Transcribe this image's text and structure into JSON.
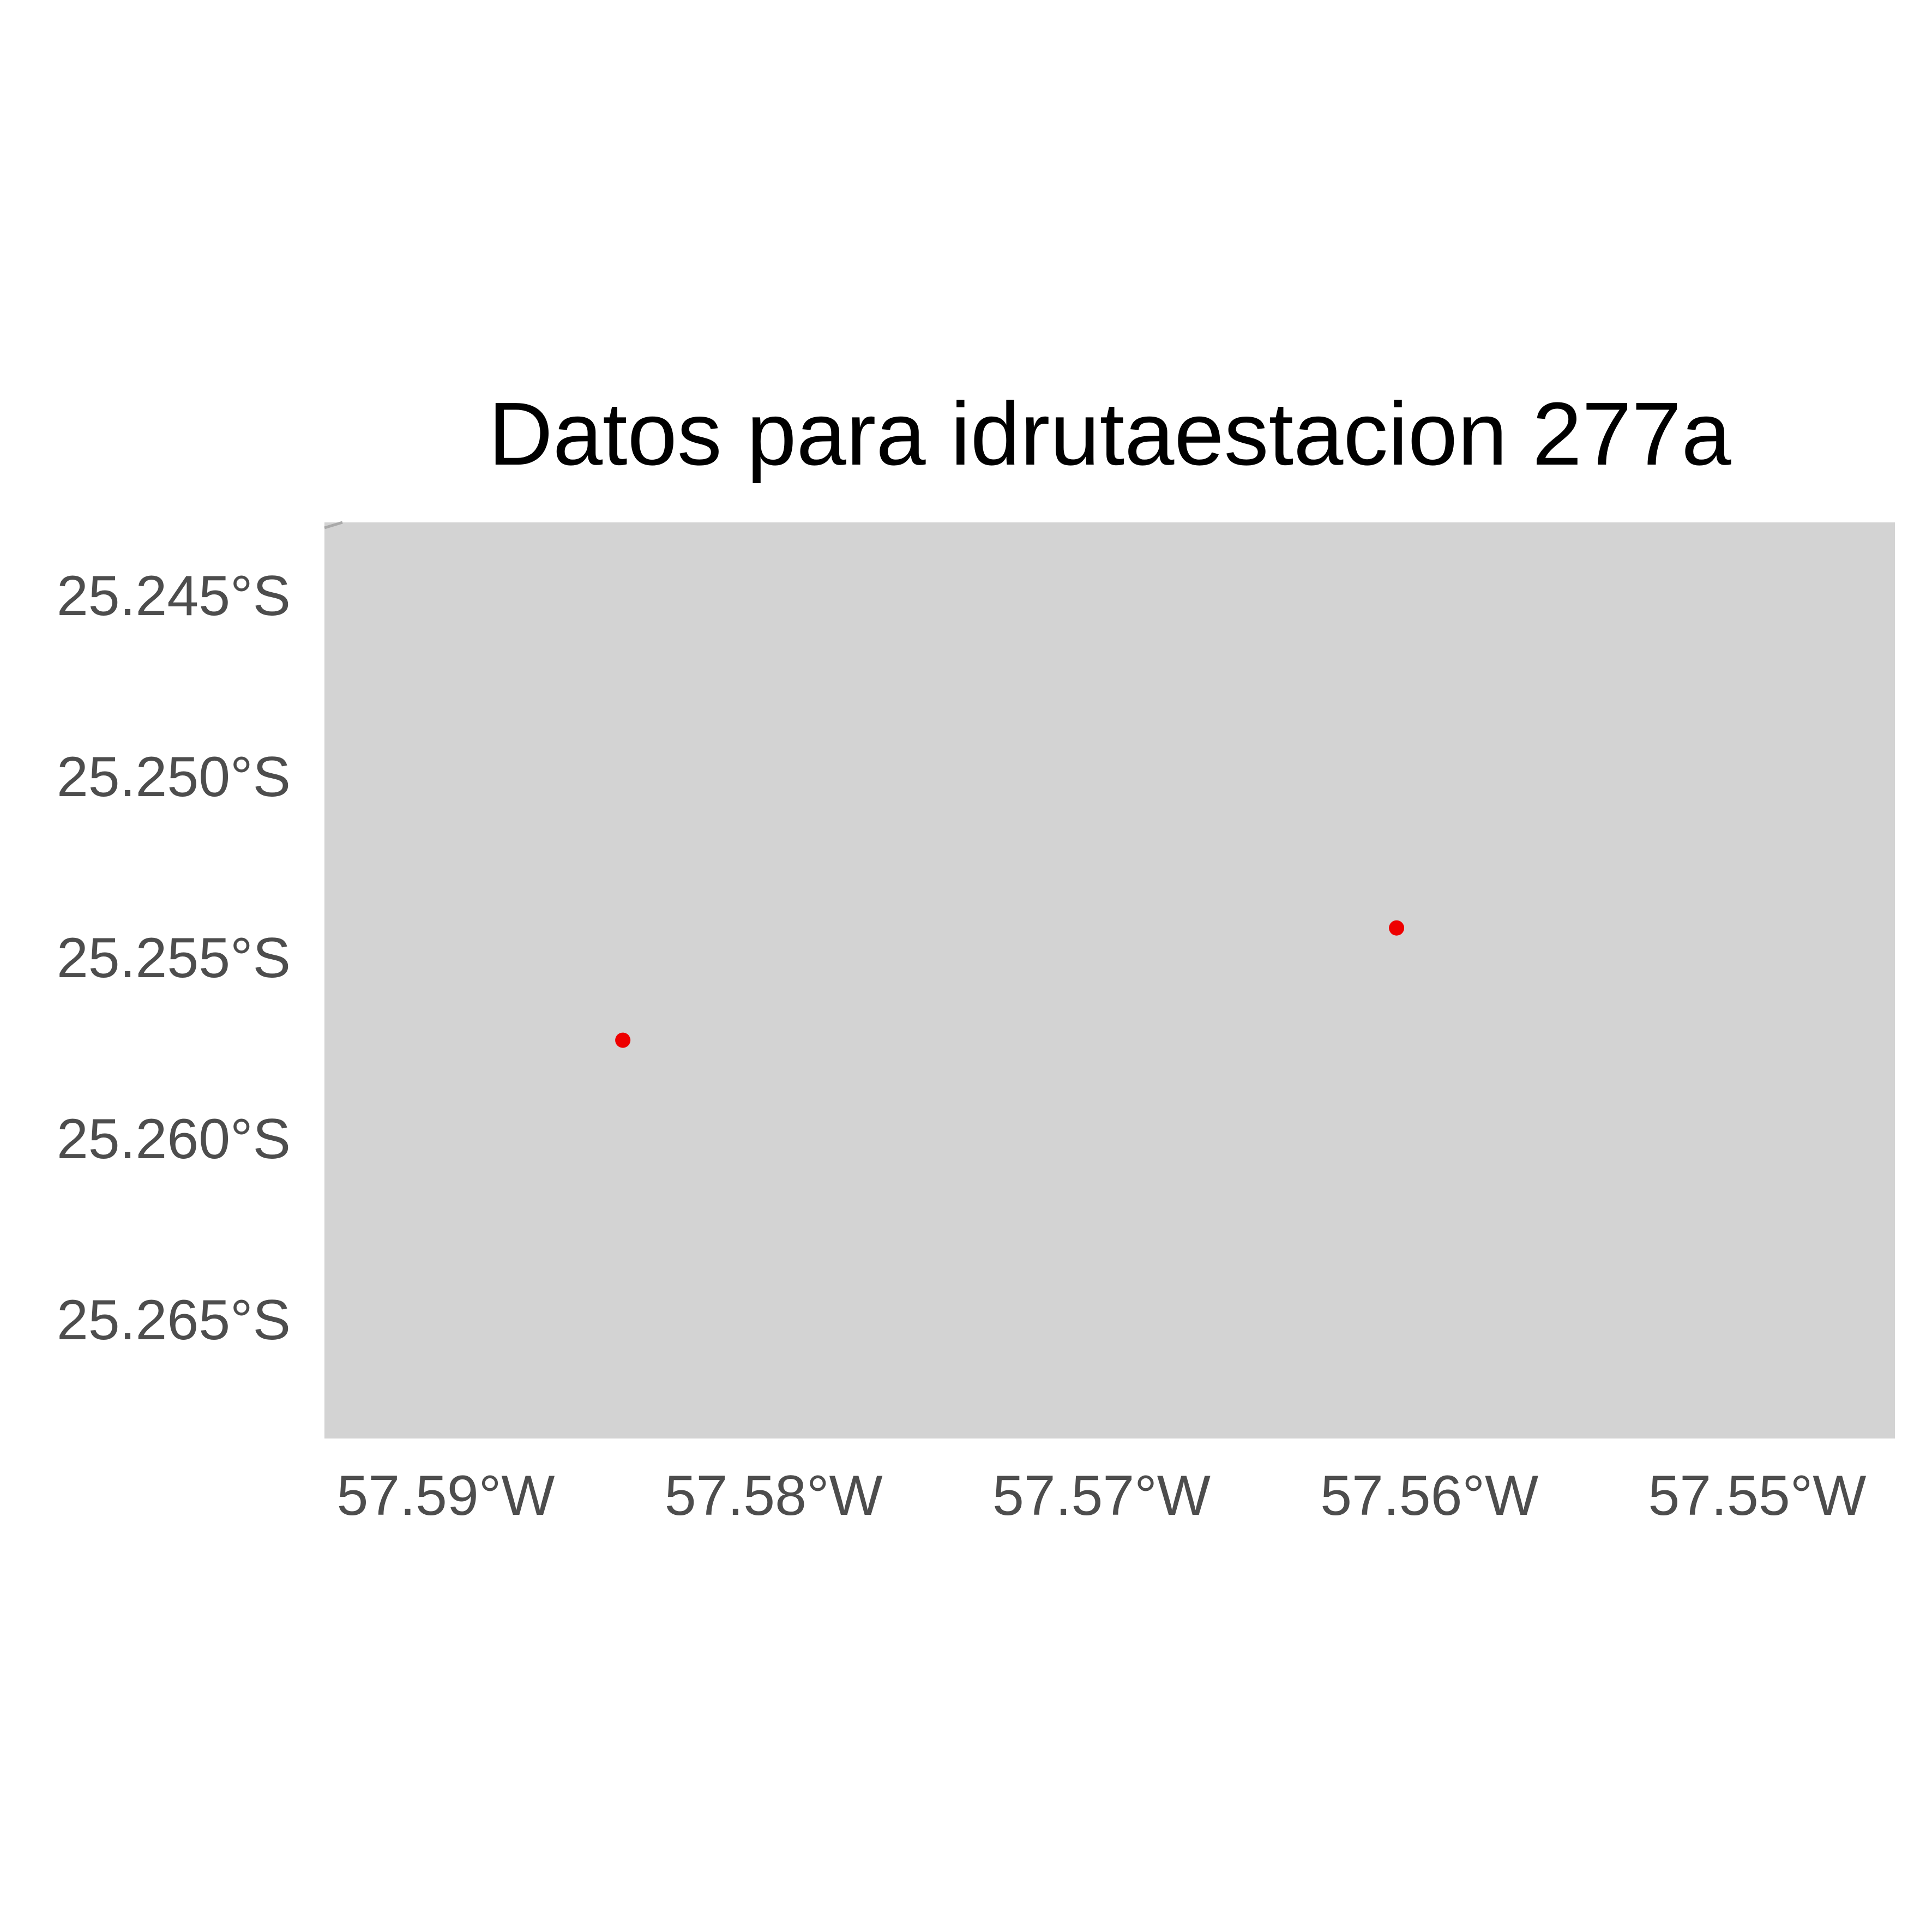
{
  "chart_data": {
    "type": "scatter",
    "title": "Datos para idrutaestacion 277a",
    "xlabel": "",
    "ylabel": "",
    "x_ticks": [
      {
        "value": -57.59,
        "label": "57.59°W"
      },
      {
        "value": -57.58,
        "label": "57.58°W"
      },
      {
        "value": -57.57,
        "label": "57.57°W"
      },
      {
        "value": -57.56,
        "label": "57.56°W"
      },
      {
        "value": -57.55,
        "label": "57.55°W"
      }
    ],
    "y_ticks": [
      {
        "value": -25.245,
        "label": "25.245°S"
      },
      {
        "value": -25.25,
        "label": "25.250°S"
      },
      {
        "value": -25.255,
        "label": "25.255°S"
      },
      {
        "value": -25.26,
        "label": "25.260°S"
      },
      {
        "value": -25.265,
        "label": "25.265°S"
      }
    ],
    "xlim": [
      -57.5937,
      -57.5458
    ],
    "ylim": [
      -25.2683,
      -25.243
    ],
    "grid": false,
    "panel_color": "#d3d3d3",
    "point_color": "#ee0000",
    "points": [
      {
        "lon": -57.5846,
        "lat": -25.2573
      },
      {
        "lon": -57.561,
        "lat": -25.2542
      }
    ]
  }
}
